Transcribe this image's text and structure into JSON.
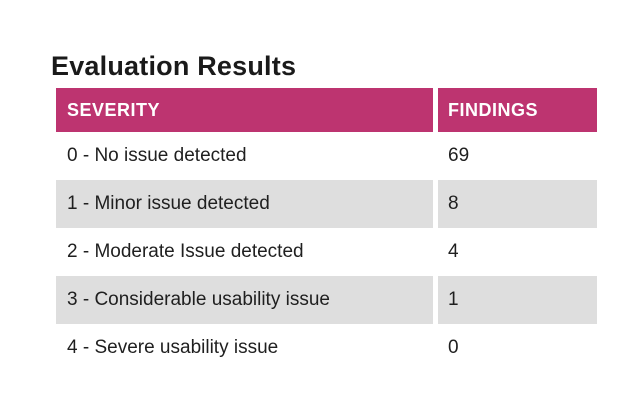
{
  "title": "Evaluation Results",
  "colors": {
    "header_bg": "#BD3470",
    "header_text": "#FFFFFF",
    "row_bg": "#FFFFFF",
    "row_alt_bg": "#DEDEDE",
    "body_text": "#1F1F1F"
  },
  "table": {
    "columns": [
      {
        "label": "SEVERITY"
      },
      {
        "label": "FINDINGS"
      }
    ],
    "rows": [
      {
        "severity": "0 - No issue detected",
        "findings": "69"
      },
      {
        "severity": "1 - Minor issue detected",
        "findings": "8"
      },
      {
        "severity": "2 - Moderate Issue detected",
        "findings": "4"
      },
      {
        "severity": "3 - Considerable usability issue",
        "findings": "1"
      },
      {
        "severity": "4 - Severe usability issue",
        "findings": "0"
      }
    ]
  },
  "chart_data": {
    "type": "table",
    "title": "Evaluation Results",
    "columns": [
      "SEVERITY",
      "FINDINGS"
    ],
    "categories": [
      "0 - No issue detected",
      "1 - Minor issue detected",
      "2 - Moderate Issue detected",
      "3 - Considerable usability issue",
      "4 - Severe usability issue"
    ],
    "values": [
      69,
      8,
      4,
      1,
      0
    ]
  }
}
